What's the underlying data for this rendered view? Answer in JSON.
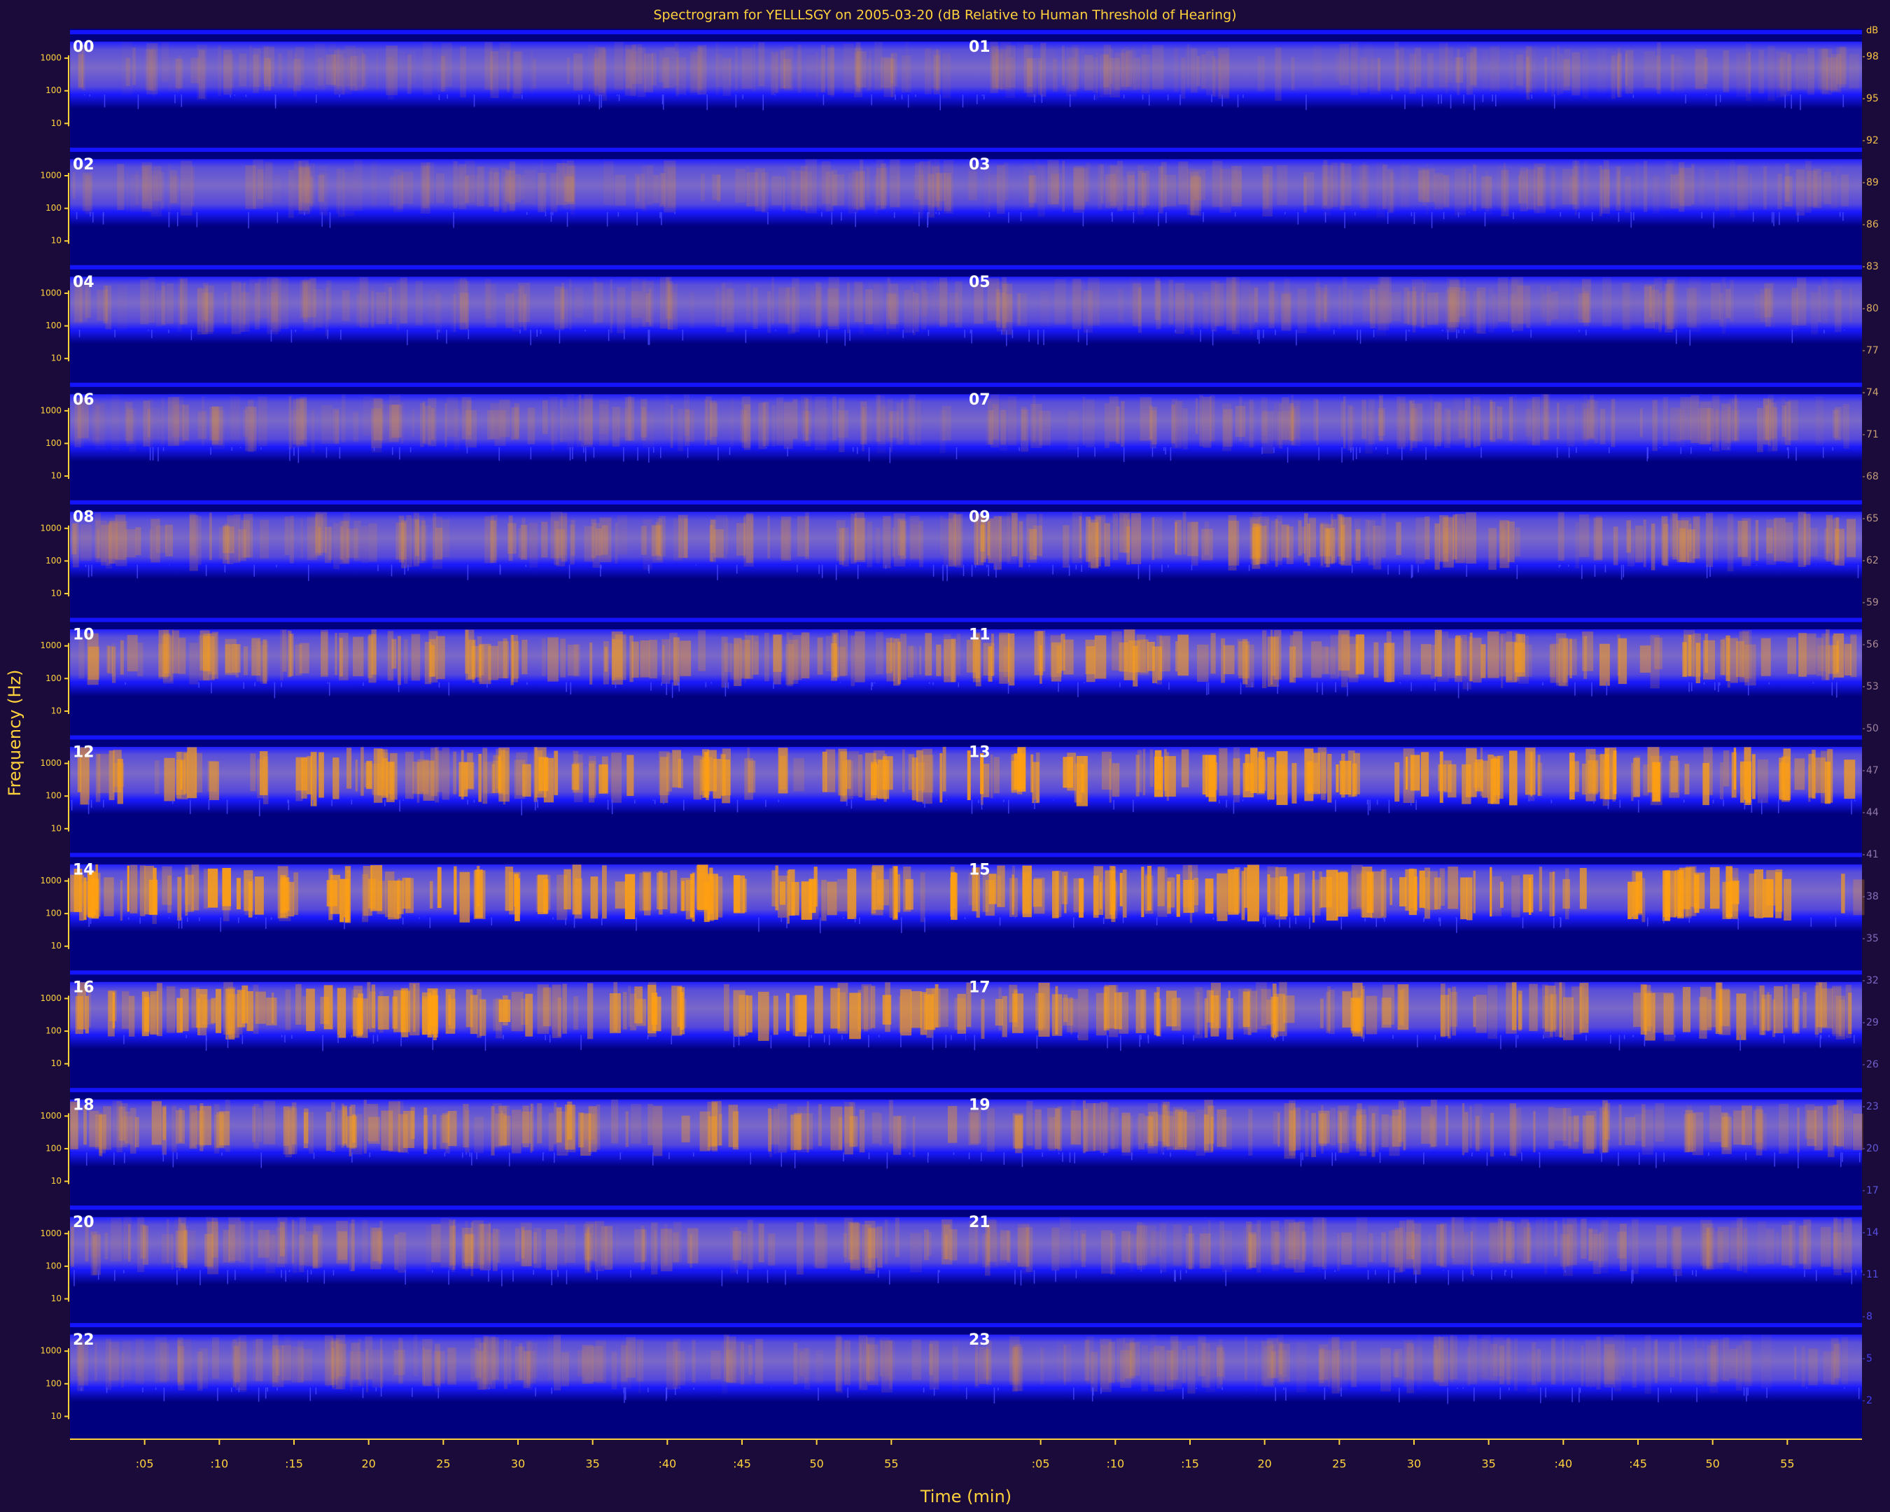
{
  "chart_data": {
    "type": "spectrogram",
    "title": "Spectrogram for YELLLSGY on 2005-03-20 (dB Relative to Human Threshold of Hearing)",
    "xlabel": "Time (min)",
    "ylabel": "Frequency (Hz)",
    "panels": [
      "00",
      "01",
      "02",
      "03",
      "04",
      "05",
      "06",
      "07",
      "08",
      "09",
      "10",
      "11",
      "12",
      "13",
      "14",
      "15",
      "16",
      "17",
      "18",
      "19",
      "20",
      "21",
      "22",
      "23"
    ],
    "xlim": [
      0,
      60
    ],
    "xticks": [
      {
        "value": 5,
        "label": ":05"
      },
      {
        "value": 10,
        "label": ":10"
      },
      {
        "value": 15,
        "label": ":15"
      },
      20,
      25,
      30,
      35,
      {
        "value": 40,
        "label": ":40"
      },
      {
        "value": 45,
        "label": ":45"
      },
      50,
      55
    ],
    "ylim": [
      2,
      8000
    ],
    "log_y": true,
    "yticks": [
      10,
      100,
      1000
    ],
    "colorbar": {
      "label": "dB",
      "clim": [
        0,
        100
      ],
      "ticks": [
        98,
        95,
        92,
        89,
        86,
        83,
        80,
        77,
        74,
        71,
        68,
        65,
        62,
        59,
        56,
        53,
        50,
        47,
        44,
        41,
        38,
        35,
        32,
        29,
        26,
        23,
        20,
        17,
        14,
        11,
        8,
        5,
        2
      ]
    }
  }
}
